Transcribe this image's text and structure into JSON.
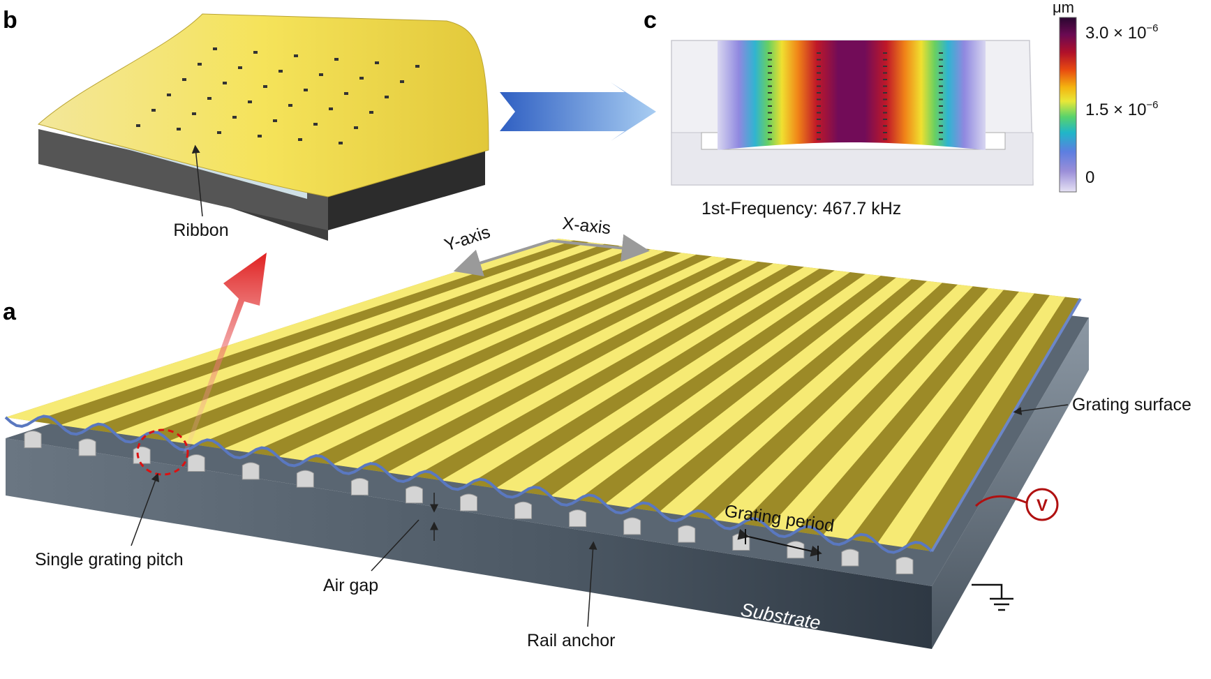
{
  "panels": {
    "a": "a",
    "b": "b",
    "c": "c"
  },
  "panel_b": {
    "ribbon_label": "Ribbon"
  },
  "panel_c": {
    "frequency_label": "1st-Frequency: 467.7 kHz",
    "colorbar": {
      "unit": "μm",
      "tick_top_mantissa": "3.0 × 10",
      "tick_top_exp": "−6",
      "tick_mid_mantissa": "1.5 × 10",
      "tick_mid_exp": "−6",
      "tick_bottom": "0",
      "colors": [
        "#2a0630",
        "#6b0a52",
        "#b0102a",
        "#e84a10",
        "#f4b410",
        "#e8e838",
        "#58d26c",
        "#20b6c8",
        "#5d7ee0",
        "#9a8ed8",
        "#e6e2f4"
      ]
    }
  },
  "panel_a": {
    "y_axis_label": "Y-axis",
    "x_axis_label": "X-axis",
    "grating_surface_label": "Grating surface",
    "grating_period_label": "Grating period",
    "single_pitch_label": "Single grating pitch",
    "air_gap_label": "Air gap",
    "rail_anchor_label": "Rail anchor",
    "substrate_label": "Substrate",
    "voltage_symbol": "V"
  },
  "colors": {
    "gold_light": "#f7e76a",
    "gold_mid": "#c8b43a",
    "gold_dark": "#7a6a18",
    "substrate": "#4e5a66",
    "highlight_red": "#cc2222",
    "arrow_blue": "#4a86d6"
  }
}
